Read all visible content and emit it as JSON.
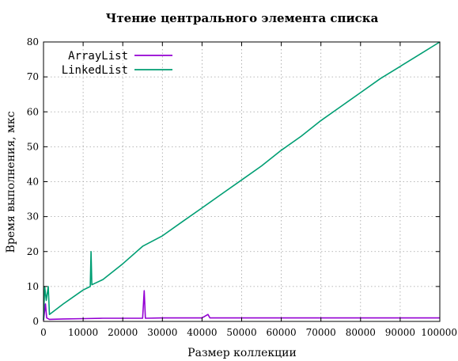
{
  "chart_data": {
    "type": "line",
    "title": "Чтение центрального элемента списка",
    "xlabel": "Размер коллекции",
    "ylabel": "Время выполнения, мкс",
    "xlim": [
      0,
      100000
    ],
    "ylim": [
      0,
      80
    ],
    "xticks": [
      0,
      10000,
      20000,
      30000,
      40000,
      50000,
      60000,
      70000,
      80000,
      90000,
      100000
    ],
    "yticks": [
      0,
      10,
      20,
      30,
      40,
      50,
      60,
      70,
      80
    ],
    "grid": true,
    "legend_position": "top-left",
    "series": [
      {
        "name": "ArrayList",
        "color": "#9400d3",
        "points": [
          [
            0,
            0.3
          ],
          [
            500,
            5.0
          ],
          [
            800,
            1.0
          ],
          [
            1500,
            0.6
          ],
          [
            5000,
            0.7
          ],
          [
            10000,
            0.8
          ],
          [
            15000,
            0.9
          ],
          [
            20000,
            0.9
          ],
          [
            25000,
            0.9
          ],
          [
            25400,
            8.8
          ],
          [
            25700,
            0.9
          ],
          [
            30000,
            1.0
          ],
          [
            35000,
            1.0
          ],
          [
            40000,
            1.0
          ],
          [
            41500,
            2.0
          ],
          [
            42000,
            1.0
          ],
          [
            50000,
            1.0
          ],
          [
            60000,
            1.0
          ],
          [
            70000,
            1.0
          ],
          [
            80000,
            1.0
          ],
          [
            90000,
            1.0
          ],
          [
            100000,
            1.0
          ]
        ]
      },
      {
        "name": "LinkedList",
        "color": "#009e73",
        "points": [
          [
            0,
            0.5
          ],
          [
            300,
            10.0
          ],
          [
            700,
            6.0
          ],
          [
            1200,
            10.0
          ],
          [
            1500,
            2.0
          ],
          [
            5000,
            5.0
          ],
          [
            10000,
            9.0
          ],
          [
            11800,
            10.0
          ],
          [
            12000,
            20.0
          ],
          [
            12200,
            10.5
          ],
          [
            15000,
            12.0
          ],
          [
            20000,
            16.5
          ],
          [
            25000,
            21.5
          ],
          [
            30000,
            24.5
          ],
          [
            35000,
            28.5
          ],
          [
            40000,
            32.5
          ],
          [
            45000,
            36.5
          ],
          [
            50000,
            40.5
          ],
          [
            55000,
            44.5
          ],
          [
            60000,
            49.0
          ],
          [
            65000,
            53.0
          ],
          [
            70000,
            57.5
          ],
          [
            75000,
            61.5
          ],
          [
            80000,
            65.5
          ],
          [
            85000,
            69.5
          ],
          [
            90000,
            73.0
          ],
          [
            95000,
            76.5
          ],
          [
            100000,
            80.0
          ]
        ]
      }
    ]
  }
}
